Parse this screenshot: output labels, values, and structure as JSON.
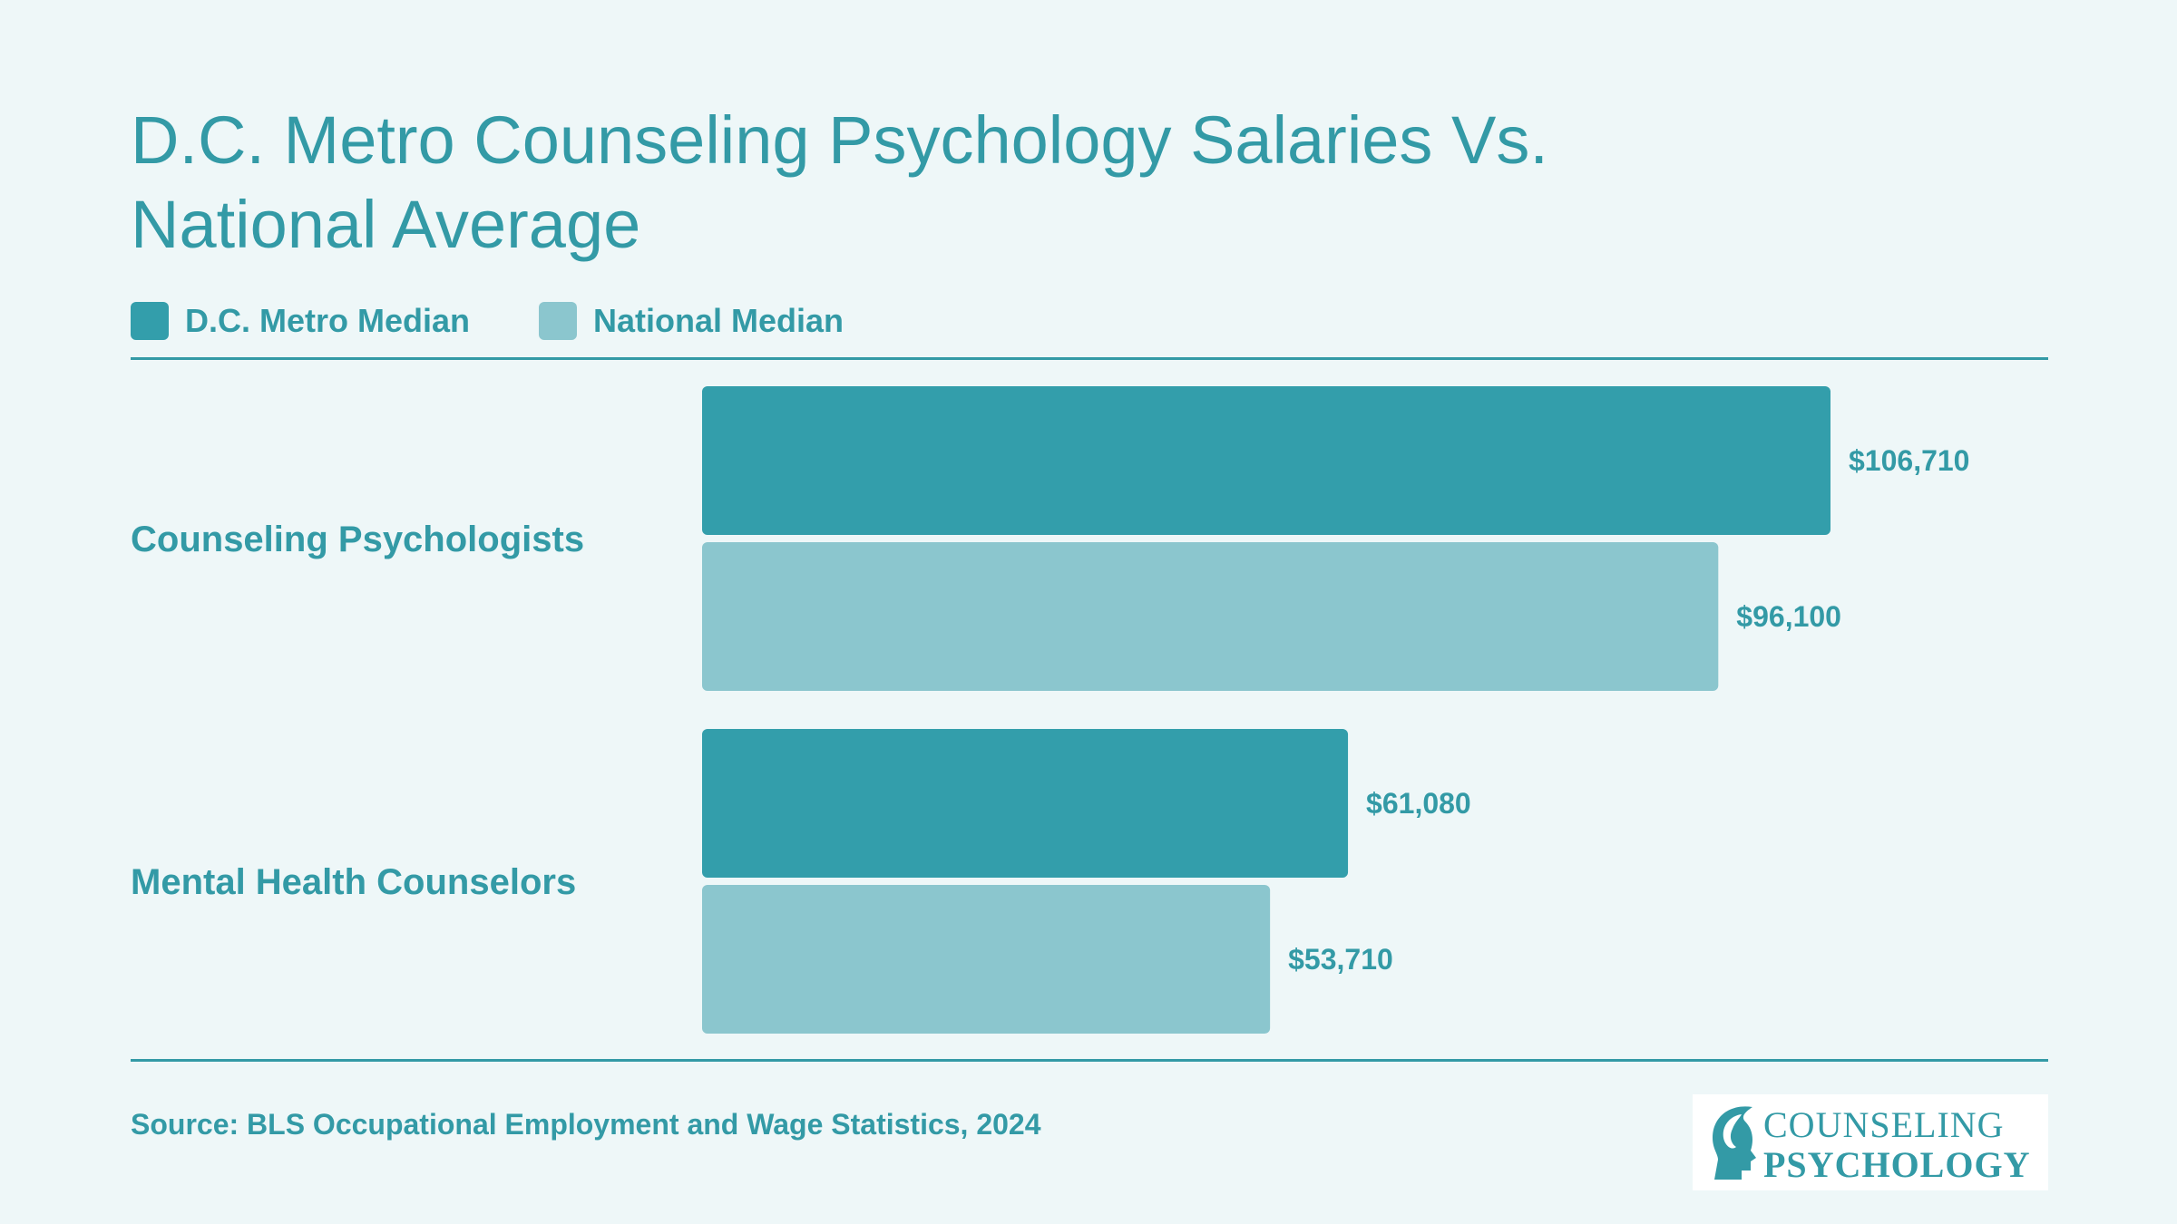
{
  "title_line1": "D.C. Metro Counseling Psychology Salaries Vs.",
  "title_line2": "National Average",
  "legend": [
    {
      "label": "D.C. Metro Median",
      "color": "#339eab"
    },
    {
      "label": "National Median",
      "color": "#8bc6ce"
    }
  ],
  "source": "Source: BLS Occupational Employment and Wage Statistics, 2024",
  "logo": {
    "line1": "COUNSELING",
    "line2": "PSYCHOLOGY"
  },
  "chart_data": {
    "type": "bar",
    "orientation": "horizontal",
    "categories": [
      "Counseling Psychologists",
      "Mental Health Counselors"
    ],
    "series": [
      {
        "name": "D.C. Metro Median",
        "values": [
          106710,
          61080
        ],
        "labels": [
          "$106,710",
          "$61,080"
        ],
        "color": "#339eab"
      },
      {
        "name": "National Median",
        "values": [
          96100,
          53710
        ],
        "labels": [
          "$96,100",
          "$53,710"
        ],
        "color": "#8bc6ce"
      }
    ],
    "xlim": [
      0,
      106710
    ],
    "grid": false,
    "legend_position": "top-left"
  }
}
